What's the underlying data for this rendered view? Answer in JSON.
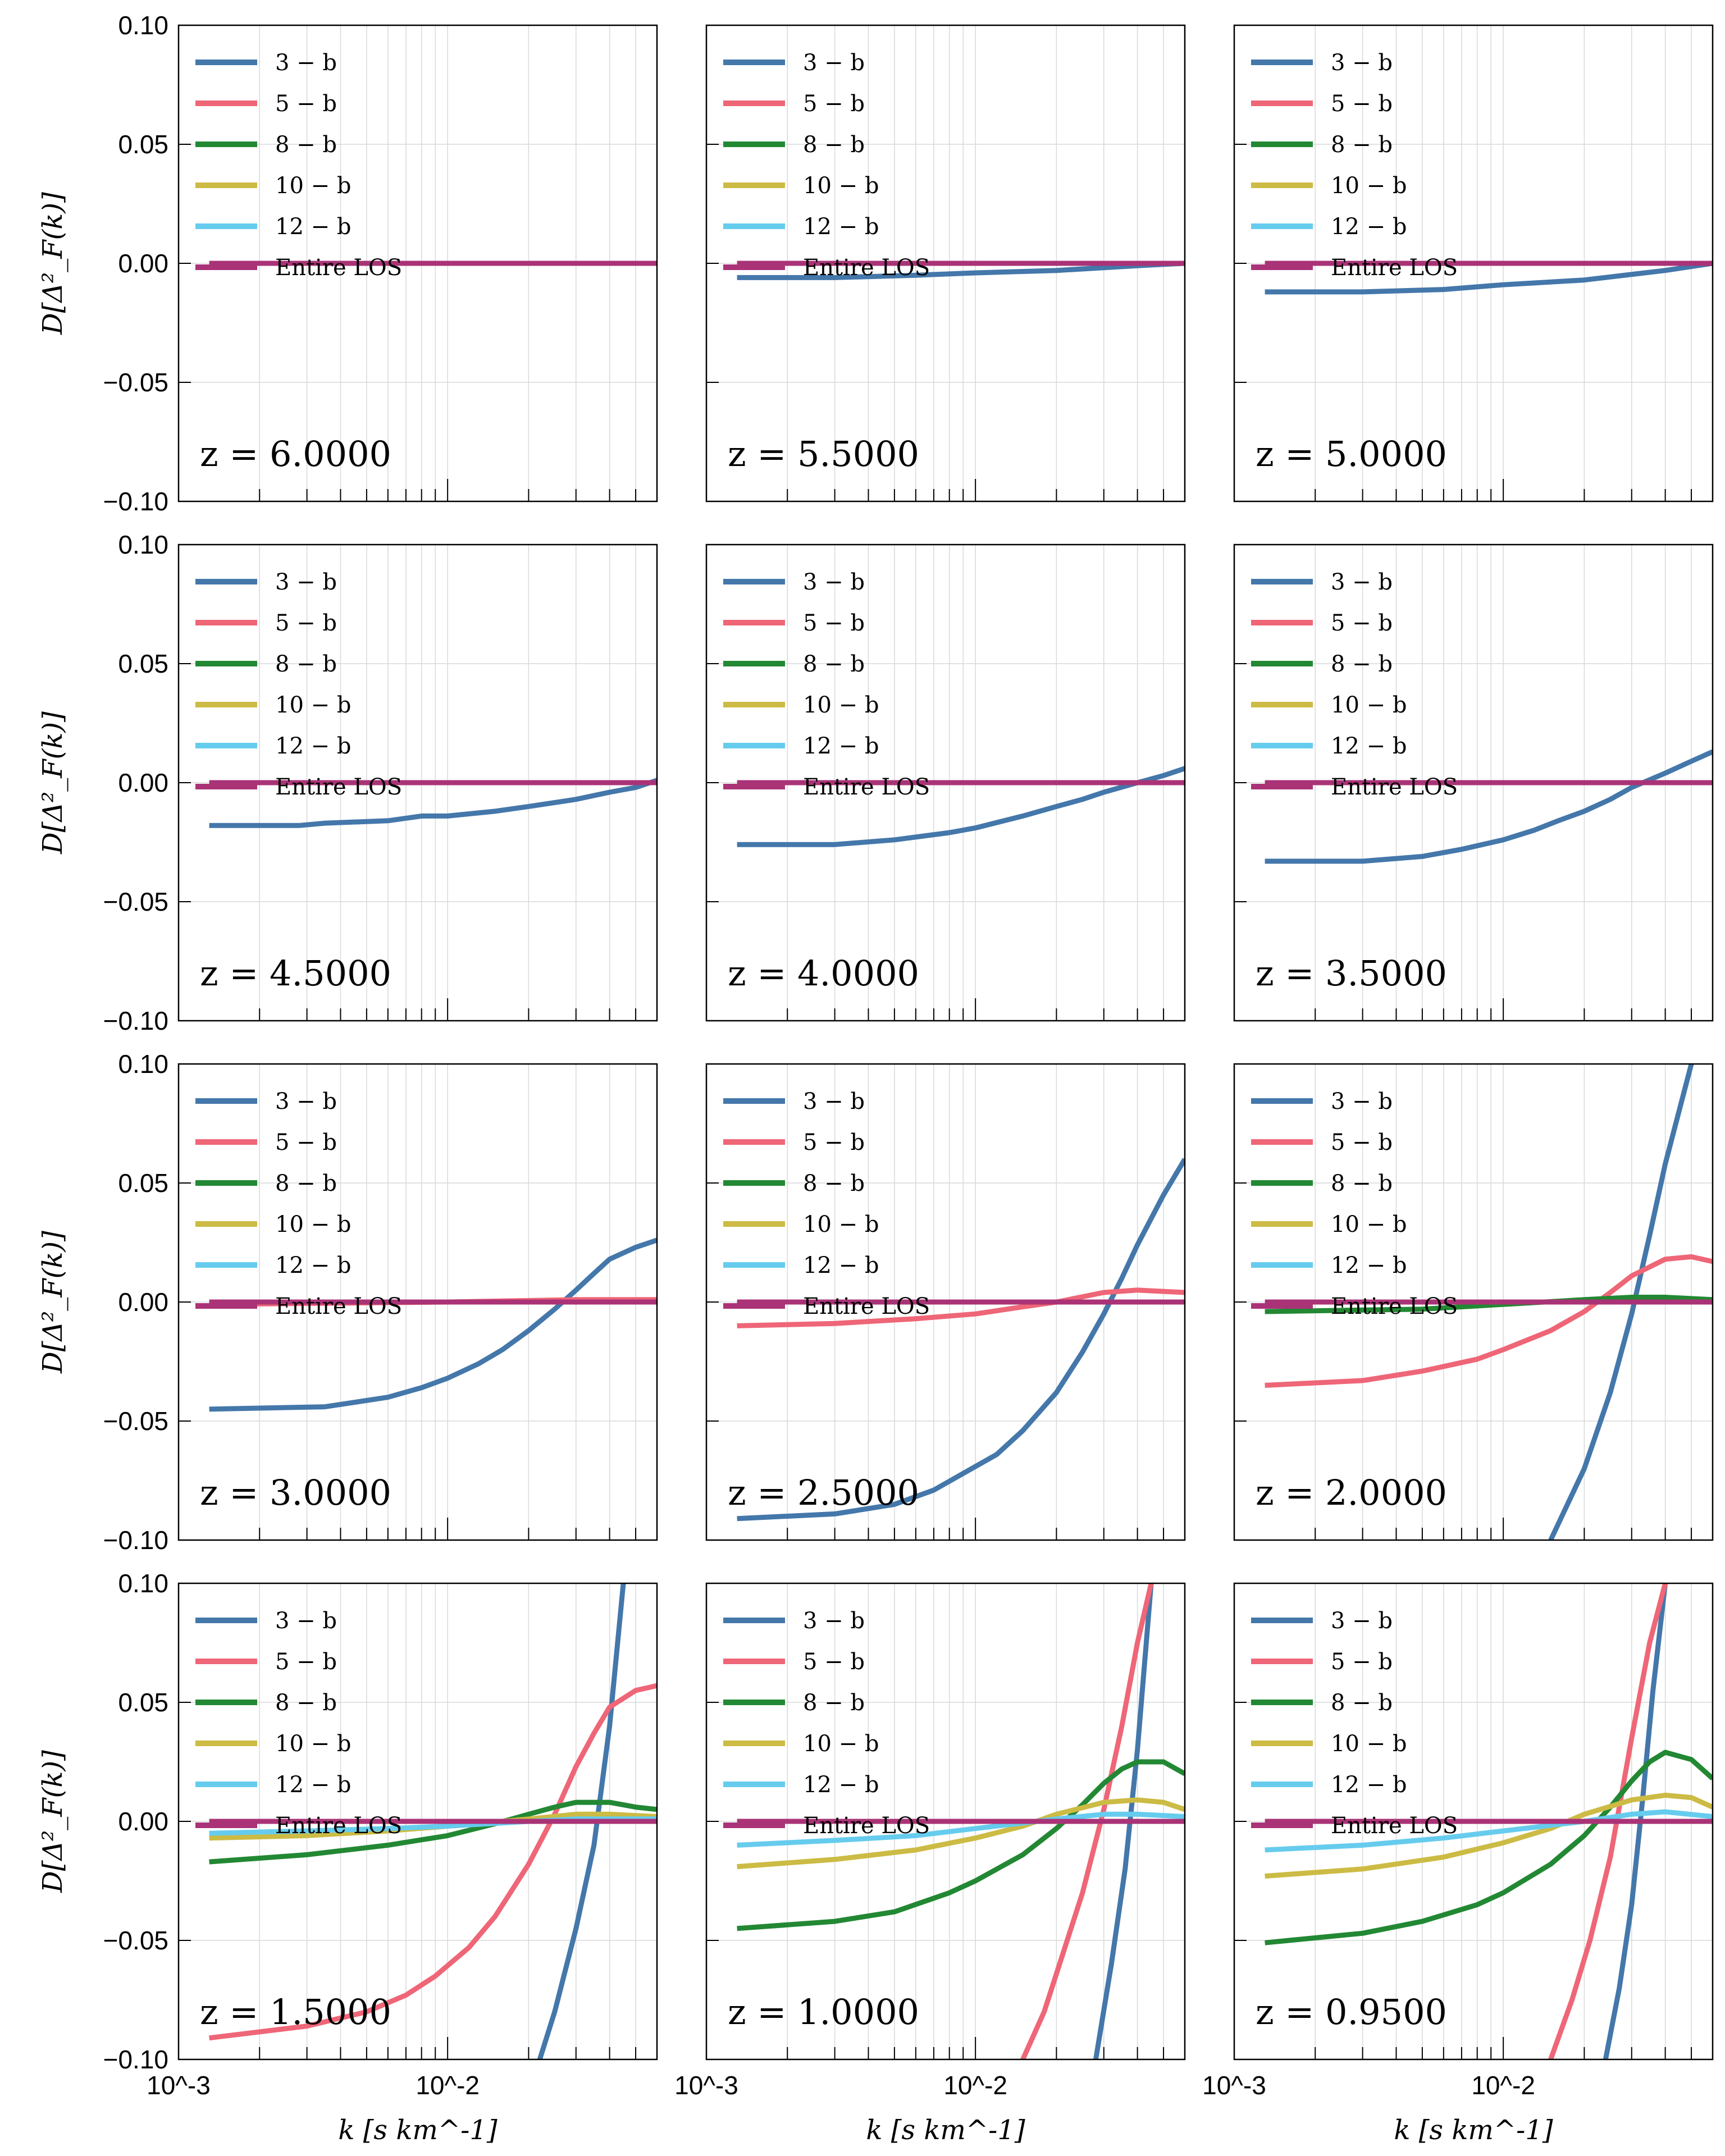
{
  "chart_data": {
    "type": "line",
    "layout": "4x3 panel grid",
    "xscale": "log",
    "xlim": [
      0.001,
      0.06
    ],
    "ylim": [
      -0.1,
      0.1
    ],
    "xlabel": "k [s km^-1]",
    "ylabel": "D[Δ²_F(k)]",
    "xticklabels": [
      "10^-3",
      "10^-2"
    ],
    "yticklabels": [
      "0.10",
      "0.05",
      "0.00",
      "−0.05",
      "−0.10"
    ],
    "grid": true,
    "legend_location": "upper left",
    "legend": [
      {
        "name": "3 − b",
        "color": "#4477AA"
      },
      {
        "name": "5 − b",
        "color": "#EE6677"
      },
      {
        "name": "8 − b",
        "color": "#228833"
      },
      {
        "name": "10 − b",
        "color": "#CCBB44"
      },
      {
        "name": "12 − b",
        "color": "#66CCEE"
      },
      {
        "name": "Entire LOS",
        "color": "#AA3377"
      }
    ],
    "panels": [
      {
        "label": "z = 6.0000",
        "series": [
          {
            "name": "Entire LOS",
            "x": [
              0.0013,
              0.06
            ],
            "y": [
              0.0,
              0.0
            ]
          }
        ]
      },
      {
        "label": "z = 5.5000",
        "series": [
          {
            "name": "3 − b",
            "x": [
              0.0013,
              0.003,
              0.006,
              0.01,
              0.02,
              0.04,
              0.06
            ],
            "y": [
              -0.006,
              -0.006,
              -0.005,
              -0.004,
              -0.003,
              -0.001,
              0.0
            ]
          },
          {
            "name": "Entire LOS",
            "x": [
              0.0013,
              0.06
            ],
            "y": [
              0.0,
              0.0
            ]
          }
        ]
      },
      {
        "label": "z = 5.0000",
        "series": [
          {
            "name": "3 − b",
            "x": [
              0.0013,
              0.003,
              0.006,
              0.01,
              0.02,
              0.04,
              0.06
            ],
            "y": [
              -0.012,
              -0.012,
              -0.011,
              -0.009,
              -0.007,
              -0.003,
              0.0
            ]
          },
          {
            "name": "Entire LOS",
            "x": [
              0.0013,
              0.06
            ],
            "y": [
              0.0,
              0.0
            ]
          }
        ]
      },
      {
        "label": "z = 4.5000",
        "series": [
          {
            "name": "3 − b",
            "x": [
              0.0013,
              0.0028,
              0.0035,
              0.006,
              0.008,
              0.01,
              0.015,
              0.02,
              0.03,
              0.04,
              0.05,
              0.06
            ],
            "y": [
              -0.018,
              -0.018,
              -0.017,
              -0.016,
              -0.014,
              -0.014,
              -0.012,
              -0.01,
              -0.007,
              -0.004,
              -0.002,
              0.001
            ]
          },
          {
            "name": "Entire LOS",
            "x": [
              0.0013,
              0.06
            ],
            "y": [
              0.0,
              0.0
            ]
          }
        ]
      },
      {
        "label": "z = 4.0000",
        "series": [
          {
            "name": "3 − b",
            "x": [
              0.0013,
              0.003,
              0.005,
              0.008,
              0.01,
              0.015,
              0.02,
              0.025,
              0.03,
              0.04,
              0.05,
              0.06
            ],
            "y": [
              -0.026,
              -0.026,
              -0.024,
              -0.021,
              -0.019,
              -0.014,
              -0.01,
              -0.007,
              -0.004,
              0.0,
              0.003,
              0.006
            ]
          },
          {
            "name": "Entire LOS",
            "x": [
              0.0013,
              0.06
            ],
            "y": [
              0.0,
              0.0
            ]
          }
        ]
      },
      {
        "label": "z = 3.5000",
        "series": [
          {
            "name": "3 − b",
            "x": [
              0.0013,
              0.003,
              0.005,
              0.007,
              0.01,
              0.013,
              0.016,
              0.02,
              0.025,
              0.03,
              0.04,
              0.05,
              0.06
            ],
            "y": [
              -0.033,
              -0.033,
              -0.031,
              -0.028,
              -0.024,
              -0.02,
              -0.016,
              -0.012,
              -0.007,
              -0.002,
              0.004,
              0.009,
              0.013
            ]
          },
          {
            "name": "Entire LOS",
            "x": [
              0.0013,
              0.06
            ],
            "y": [
              0.0,
              0.0
            ]
          }
        ]
      },
      {
        "label": "z = 3.0000",
        "series": [
          {
            "name": "3 − b",
            "x": [
              0.0013,
              0.0035,
              0.006,
              0.008,
              0.01,
              0.013,
              0.016,
              0.02,
              0.025,
              0.03,
              0.035,
              0.04,
              0.05,
              0.06
            ],
            "y": [
              -0.045,
              -0.044,
              -0.04,
              -0.036,
              -0.032,
              -0.026,
              -0.02,
              -0.012,
              -0.003,
              0.005,
              0.012,
              0.018,
              0.023,
              0.026
            ]
          },
          {
            "name": "5 − b",
            "x": [
              0.0013,
              0.01,
              0.03,
              0.06
            ],
            "y": [
              -0.001,
              0.0,
              0.001,
              0.001
            ]
          },
          {
            "name": "Entire LOS",
            "x": [
              0.0013,
              0.06
            ],
            "y": [
              0.0,
              0.0
            ]
          }
        ]
      },
      {
        "label": "z = 2.5000",
        "series": [
          {
            "name": "3 − b",
            "x": [
              0.0013,
              0.003,
              0.005,
              0.007,
              0.009,
              0.012,
              0.015,
              0.02,
              0.025,
              0.03,
              0.035,
              0.04,
              0.05,
              0.06
            ],
            "y": [
              -0.091,
              -0.089,
              -0.085,
              -0.079,
              -0.072,
              -0.064,
              -0.054,
              -0.038,
              -0.021,
              -0.005,
              0.01,
              0.024,
              0.045,
              0.06
            ]
          },
          {
            "name": "5 − b",
            "x": [
              0.0013,
              0.003,
              0.006,
              0.01,
              0.015,
              0.02,
              0.03,
              0.04,
              0.06
            ],
            "y": [
              -0.01,
              -0.009,
              -0.007,
              -0.005,
              -0.002,
              0.0,
              0.004,
              0.005,
              0.004
            ]
          },
          {
            "name": "Entire LOS",
            "x": [
              0.0013,
              0.06
            ],
            "y": [
              0.0,
              0.0
            ]
          }
        ]
      },
      {
        "label": "z = 2.0000",
        "series": [
          {
            "name": "3 − b",
            "x": [
              0.015,
              0.02,
              0.025,
              0.03,
              0.035,
              0.04,
              0.05
            ],
            "y": [
              -0.1,
              -0.07,
              -0.038,
              -0.005,
              0.028,
              0.058,
              0.1
            ]
          },
          {
            "name": "5 − b",
            "x": [
              0.0013,
              0.003,
              0.005,
              0.008,
              0.01,
              0.015,
              0.02,
              0.025,
              0.03,
              0.04,
              0.05,
              0.06
            ],
            "y": [
              -0.035,
              -0.033,
              -0.029,
              -0.024,
              -0.02,
              -0.012,
              -0.004,
              0.004,
              0.011,
              0.018,
              0.019,
              0.017
            ]
          },
          {
            "name": "8 − b",
            "x": [
              0.0013,
              0.005,
              0.01,
              0.02,
              0.03,
              0.04,
              0.06
            ],
            "y": [
              -0.004,
              -0.003,
              -0.001,
              0.001,
              0.002,
              0.002,
              0.001
            ]
          },
          {
            "name": "Entire LOS",
            "x": [
              0.0013,
              0.06
            ],
            "y": [
              0.0,
              0.0
            ]
          }
        ]
      },
      {
        "label": "z = 1.5000",
        "series": [
          {
            "name": "3 − b",
            "x": [
              0.022,
              0.025,
              0.03,
              0.035,
              0.04,
              0.045
            ],
            "y": [
              -0.1,
              -0.08,
              -0.045,
              -0.01,
              0.04,
              0.1
            ]
          },
          {
            "name": "5 − b",
            "x": [
              0.0013,
              0.003,
              0.005,
              0.007,
              0.009,
              0.012,
              0.015,
              0.02,
              0.025,
              0.03,
              0.035,
              0.04,
              0.05,
              0.06
            ],
            "y": [
              -0.091,
              -0.086,
              -0.08,
              -0.073,
              -0.065,
              -0.053,
              -0.04,
              -0.018,
              0.003,
              0.023,
              0.037,
              0.048,
              0.055,
              0.057
            ]
          },
          {
            "name": "8 − b",
            "x": [
              0.0013,
              0.003,
              0.006,
              0.01,
              0.015,
              0.02,
              0.025,
              0.03,
              0.04,
              0.05,
              0.06
            ],
            "y": [
              -0.017,
              -0.014,
              -0.01,
              -0.006,
              -0.001,
              0.003,
              0.006,
              0.008,
              0.008,
              0.006,
              0.005
            ]
          },
          {
            "name": "10 − b",
            "x": [
              0.0013,
              0.003,
              0.006,
              0.01,
              0.02,
              0.03,
              0.04,
              0.06
            ],
            "y": [
              -0.007,
              -0.006,
              -0.004,
              -0.002,
              0.001,
              0.003,
              0.003,
              0.002
            ]
          },
          {
            "name": "12 − b",
            "x": [
              0.0013,
              0.003,
              0.006,
              0.01,
              0.02,
              0.03,
              0.06
            ],
            "y": [
              -0.005,
              -0.004,
              -0.003,
              -0.002,
              0.0,
              0.001,
              0.001
            ]
          },
          {
            "name": "Entire LOS",
            "x": [
              0.0013,
              0.06
            ],
            "y": [
              0.0,
              0.0
            ]
          }
        ]
      },
      {
        "label": "z = 1.0000",
        "series": [
          {
            "name": "3 − b",
            "x": [
              0.028,
              0.032,
              0.036,
              0.04,
              0.045
            ],
            "y": [
              -0.1,
              -0.06,
              -0.02,
              0.03,
              0.1
            ]
          },
          {
            "name": "5 − b",
            "x": [
              0.015,
              0.018,
              0.02,
              0.025,
              0.03,
              0.035,
              0.04,
              0.045
            ],
            "y": [
              -0.1,
              -0.08,
              -0.064,
              -0.03,
              0.005,
              0.04,
              0.075,
              0.1
            ]
          },
          {
            "name": "8 − b",
            "x": [
              0.0013,
              0.003,
              0.005,
              0.008,
              0.01,
              0.015,
              0.02,
              0.025,
              0.03,
              0.035,
              0.04,
              0.05,
              0.06
            ],
            "y": [
              -0.045,
              -0.042,
              -0.038,
              -0.03,
              -0.025,
              -0.014,
              -0.003,
              0.007,
              0.016,
              0.022,
              0.025,
              0.025,
              0.02
            ]
          },
          {
            "name": "10 − b",
            "x": [
              0.0013,
              0.003,
              0.006,
              0.01,
              0.015,
              0.02,
              0.03,
              0.04,
              0.05,
              0.06
            ],
            "y": [
              -0.019,
              -0.016,
              -0.012,
              -0.007,
              -0.002,
              0.003,
              0.008,
              0.009,
              0.008,
              0.005
            ]
          },
          {
            "name": "12 − b",
            "x": [
              0.0013,
              0.003,
              0.006,
              0.01,
              0.02,
              0.03,
              0.04,
              0.06
            ],
            "y": [
              -0.01,
              -0.008,
              -0.006,
              -0.003,
              0.001,
              0.003,
              0.003,
              0.002
            ]
          },
          {
            "name": "Entire LOS",
            "x": [
              0.0013,
              0.06
            ],
            "y": [
              0.0,
              0.0
            ]
          }
        ]
      },
      {
        "label": "z = 0.9500",
        "series": [
          {
            "name": "3 − b",
            "x": [
              0.024,
              0.027,
              0.03,
              0.033,
              0.036,
              0.04
            ],
            "y": [
              -0.1,
              -0.07,
              -0.035,
              0.01,
              0.055,
              0.1
            ]
          },
          {
            "name": "5 − b",
            "x": [
              0.015,
              0.018,
              0.021,
              0.025,
              0.03,
              0.035,
              0.04
            ],
            "y": [
              -0.1,
              -0.075,
              -0.05,
              -0.015,
              0.035,
              0.075,
              0.1
            ]
          },
          {
            "name": "8 − b",
            "x": [
              0.0013,
              0.003,
              0.005,
              0.008,
              0.01,
              0.015,
              0.02,
              0.025,
              0.03,
              0.035,
              0.04,
              0.05,
              0.06
            ],
            "y": [
              -0.051,
              -0.047,
              -0.042,
              -0.035,
              -0.03,
              -0.018,
              -0.006,
              0.006,
              0.017,
              0.025,
              0.029,
              0.026,
              0.018
            ]
          },
          {
            "name": "10 − b",
            "x": [
              0.0013,
              0.003,
              0.006,
              0.01,
              0.015,
              0.02,
              0.03,
              0.04,
              0.05,
              0.06
            ],
            "y": [
              -0.023,
              -0.02,
              -0.015,
              -0.009,
              -0.003,
              0.003,
              0.009,
              0.011,
              0.01,
              0.006
            ]
          },
          {
            "name": "12 − b",
            "x": [
              0.0013,
              0.003,
              0.006,
              0.01,
              0.02,
              0.03,
              0.04,
              0.06
            ],
            "y": [
              -0.012,
              -0.01,
              -0.007,
              -0.004,
              0.0,
              0.003,
              0.004,
              0.002
            ]
          },
          {
            "name": "Entire LOS",
            "x": [
              0.0013,
              0.06
            ],
            "y": [
              0.0,
              0.0
            ]
          }
        ]
      }
    ]
  }
}
